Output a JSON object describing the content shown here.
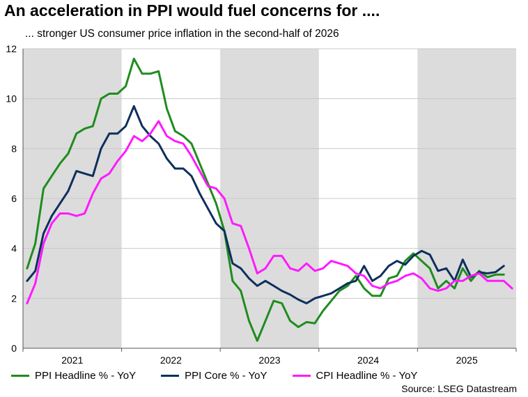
{
  "title": "An acceleration in PPI would fuel concerns for ....",
  "subtitle": "... stronger US consumer price inflation in the second-half of 2026",
  "source": "Source: LSEG Datastream",
  "colors": {
    "ppi_headline": "#1e8c1e",
    "ppi_core": "#0d2f5c",
    "cpi_headline": "#ff1aff",
    "shade": "#dcdcdc"
  },
  "chart_data": {
    "type": "line",
    "title": "An acceleration in PPI would fuel concerns for ....",
    "subtitle": "... stronger US consumer price inflation in the second-half of 2026",
    "xlabel": "",
    "ylabel": "",
    "x_ticks": [
      "2021",
      "2022",
      "2023",
      "2024",
      "2025"
    ],
    "x_range": [
      "2021-01",
      "2025-12"
    ],
    "ylim": [
      0,
      12
    ],
    "y_ticks": [
      0,
      2,
      4,
      6,
      8,
      10,
      12
    ],
    "shaded_years": [
      "2021",
      "2023",
      "2025"
    ],
    "grid": true,
    "legend_position": "bottom",
    "series": [
      {
        "name": "PPI Headline % - YoY",
        "color": "#1e8c1e",
        "x": [
          "2021-01",
          "2021-02",
          "2021-03",
          "2021-04",
          "2021-05",
          "2021-06",
          "2021-07",
          "2021-08",
          "2021-09",
          "2021-10",
          "2021-11",
          "2021-12",
          "2022-01",
          "2022-02",
          "2022-03",
          "2022-04",
          "2022-05",
          "2022-06",
          "2022-07",
          "2022-08",
          "2022-09",
          "2022-10",
          "2022-11",
          "2022-12",
          "2023-01",
          "2023-02",
          "2023-03",
          "2023-04",
          "2023-05",
          "2023-06",
          "2023-07",
          "2023-08",
          "2023-09",
          "2023-10",
          "2023-11",
          "2023-12",
          "2024-01",
          "2024-02",
          "2024-03",
          "2024-04",
          "2024-05",
          "2024-06",
          "2024-07",
          "2024-08",
          "2024-09",
          "2024-10",
          "2024-11",
          "2024-12",
          "2025-01",
          "2025-02",
          "2025-03",
          "2025-04",
          "2025-05",
          "2025-06",
          "2025-07",
          "2025-08",
          "2025-09",
          "2025-10",
          "2025-11",
          "2025-12"
        ],
        "values": [
          3.2,
          4.2,
          6.4,
          6.9,
          7.4,
          7.8,
          8.6,
          8.8,
          8.9,
          10.0,
          10.2,
          10.2,
          10.5,
          11.6,
          11.0,
          11.0,
          11.1,
          9.6,
          8.7,
          8.5,
          8.2,
          7.4,
          6.6,
          5.8,
          4.7,
          2.7,
          2.3,
          1.1,
          0.3,
          1.1,
          1.9,
          1.8,
          1.1,
          0.85,
          1.05,
          1.0,
          1.5,
          1.9,
          2.3,
          2.5,
          2.9,
          2.4,
          2.1,
          2.1,
          2.8,
          2.9,
          3.5,
          3.8,
          3.5,
          3.2,
          2.4,
          2.7,
          2.4,
          3.2,
          2.7,
          3.1,
          2.85,
          2.95,
          2.95,
          null
        ]
      },
      {
        "name": "PPI Core % - YoY",
        "color": "#0d2f5c",
        "x": [
          "2021-01",
          "2021-02",
          "2021-03",
          "2021-04",
          "2021-05",
          "2021-06",
          "2021-07",
          "2021-08",
          "2021-09",
          "2021-10",
          "2021-11",
          "2021-12",
          "2022-01",
          "2022-02",
          "2022-03",
          "2022-04",
          "2022-05",
          "2022-06",
          "2022-07",
          "2022-08",
          "2022-09",
          "2022-10",
          "2022-11",
          "2022-12",
          "2023-01",
          "2023-02",
          "2023-03",
          "2023-04",
          "2023-05",
          "2023-06",
          "2023-07",
          "2023-08",
          "2023-09",
          "2023-10",
          "2023-11",
          "2023-12",
          "2024-01",
          "2024-02",
          "2024-03",
          "2024-04",
          "2024-05",
          "2024-06",
          "2024-07",
          "2024-08",
          "2024-09",
          "2024-10",
          "2024-11",
          "2024-12",
          "2025-01",
          "2025-02",
          "2025-03",
          "2025-04",
          "2025-05",
          "2025-06",
          "2025-07",
          "2025-08",
          "2025-09",
          "2025-10",
          "2025-11",
          "2025-12"
        ],
        "values": [
          2.7,
          3.1,
          4.6,
          5.3,
          5.8,
          6.3,
          7.1,
          7.0,
          6.9,
          8.0,
          8.6,
          8.6,
          8.9,
          9.7,
          8.9,
          8.5,
          8.2,
          7.6,
          7.2,
          7.2,
          6.9,
          6.2,
          5.6,
          5.0,
          4.7,
          3.4,
          3.2,
          2.8,
          2.5,
          2.7,
          2.5,
          2.3,
          2.15,
          1.95,
          1.8,
          2.0,
          2.1,
          2.2,
          2.4,
          2.6,
          2.7,
          3.3,
          2.7,
          2.9,
          3.3,
          3.5,
          3.35,
          3.7,
          3.9,
          3.75,
          3.1,
          3.2,
          2.7,
          3.55,
          2.85,
          3.05,
          3.0,
          3.05,
          3.3,
          null
        ]
      },
      {
        "name": "CPI Headline % - YoY",
        "color": "#ff1aff",
        "x": [
          "2021-01",
          "2021-02",
          "2021-03",
          "2021-04",
          "2021-05",
          "2021-06",
          "2021-07",
          "2021-08",
          "2021-09",
          "2021-10",
          "2021-11",
          "2021-12",
          "2022-01",
          "2022-02",
          "2022-03",
          "2022-04",
          "2022-05",
          "2022-06",
          "2022-07",
          "2022-08",
          "2022-09",
          "2022-10",
          "2022-11",
          "2022-12",
          "2023-01",
          "2023-02",
          "2023-03",
          "2023-04",
          "2023-05",
          "2023-06",
          "2023-07",
          "2023-08",
          "2023-09",
          "2023-10",
          "2023-11",
          "2023-12",
          "2024-01",
          "2024-02",
          "2024-03",
          "2024-04",
          "2024-05",
          "2024-06",
          "2024-07",
          "2024-08",
          "2024-09",
          "2024-10",
          "2024-11",
          "2024-12",
          "2025-01",
          "2025-02",
          "2025-03",
          "2025-04",
          "2025-05",
          "2025-06",
          "2025-07",
          "2025-08",
          "2025-09",
          "2025-10",
          "2025-11",
          "2025-12"
        ],
        "values": [
          1.8,
          2.6,
          4.2,
          5.0,
          5.4,
          5.4,
          5.3,
          5.4,
          6.2,
          6.8,
          7.0,
          7.5,
          7.9,
          8.5,
          8.3,
          8.6,
          9.1,
          8.5,
          8.3,
          8.2,
          7.7,
          7.1,
          6.5,
          6.4,
          6.0,
          5.0,
          4.9,
          4.0,
          3.0,
          3.2,
          3.7,
          3.7,
          3.2,
          3.1,
          3.4,
          3.1,
          3.2,
          3.5,
          3.4,
          3.3,
          3.0,
          2.9,
          2.5,
          2.4,
          2.6,
          2.7,
          2.9,
          3.0,
          2.8,
          2.4,
          2.3,
          2.4,
          2.7,
          2.7,
          2.9,
          3.0,
          2.7,
          2.7,
          2.7,
          2.4
        ]
      }
    ]
  }
}
